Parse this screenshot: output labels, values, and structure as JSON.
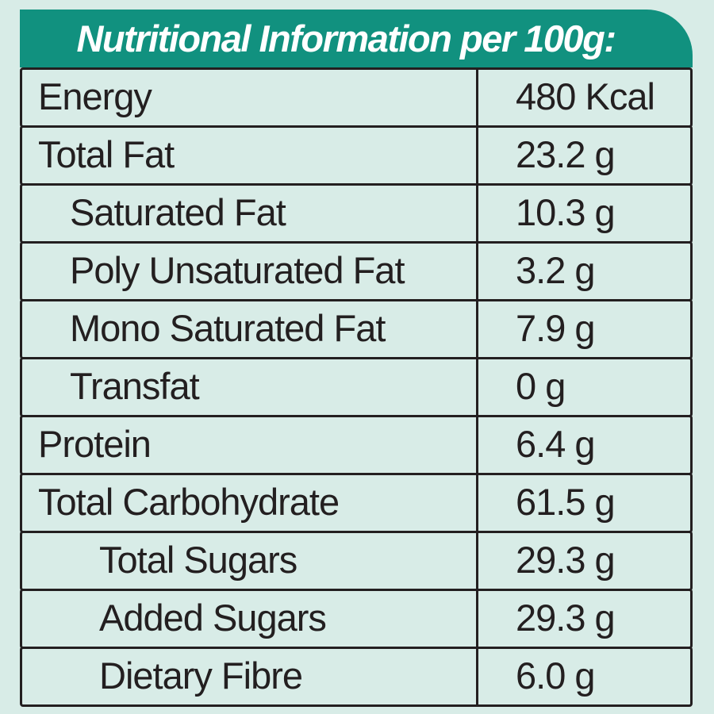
{
  "title": "Nutritional Information per 100g:",
  "colors": {
    "header_bg": "#11917F",
    "page_bg": "#D8ECE7",
    "border": "#231F20",
    "text": "#231F20",
    "title_text": "#FFFFFF"
  },
  "table": {
    "rows": [
      {
        "label": "Energy",
        "value": "480 Kcal",
        "indent": 0
      },
      {
        "label": "Total Fat",
        "value": "23.2 g",
        "indent": 0
      },
      {
        "label": "Saturated Fat",
        "value": "10.3 g",
        "indent": 1
      },
      {
        "label": "Poly Unsaturated Fat",
        "value": "3.2 g",
        "indent": 1
      },
      {
        "label": "Mono Saturated Fat",
        "value": "7.9 g",
        "indent": 1
      },
      {
        "label": "Transfat",
        "value": "0 g",
        "indent": 1
      },
      {
        "label": "Protein",
        "value": "6.4 g",
        "indent": 0
      },
      {
        "label": "Total Carbohydrate",
        "value": "61.5 g",
        "indent": 0
      },
      {
        "label": "Total Sugars",
        "value": "29.3 g",
        "indent": 2
      },
      {
        "label": "Added Sugars",
        "value": "29.3 g",
        "indent": 2
      },
      {
        "label": "Dietary Fibre",
        "value": "6.0 g",
        "indent": 2
      }
    ]
  }
}
